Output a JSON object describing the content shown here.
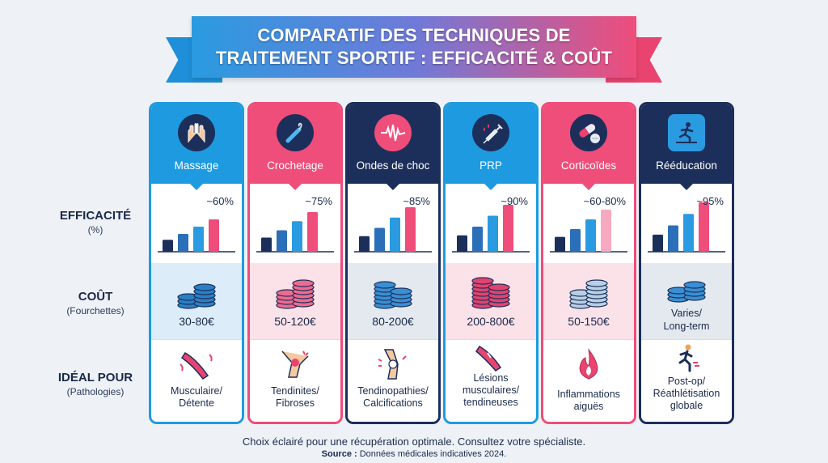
{
  "title": {
    "line1": "COMPARATIF DES TECHNIQUES DE",
    "line2": "TRAITEMENT SPORTIF : EFFICACITÉ & COÛT"
  },
  "row_labels": {
    "efficacite": {
      "main": "EFFICACITÉ",
      "sub": "(%)"
    },
    "cout": {
      "main": "COÛT",
      "sub": "(Fourchettes)"
    },
    "ideal": {
      "main": "IDÉAL POUR",
      "sub": "(Pathologies)"
    }
  },
  "colors": {
    "blue": "#1e9be0",
    "pink": "#ef4d7a",
    "navy": "#1c2f5a",
    "light_blue_bg": "#dcecf8",
    "light_pink_bg": "#fbe1e8",
    "light_gray_bg": "#e4e9f0"
  },
  "columns": [
    {
      "name": "Massage",
      "icon": "hands-icon",
      "efficacy": "~60%",
      "efficacy_value": 60,
      "cost": "30-80€",
      "ideal": [
        "Musculaire/",
        "Détente"
      ]
    },
    {
      "name": "Crochetage",
      "icon": "hook-tool-icon",
      "efficacy": "~75%",
      "efficacy_value": 75,
      "cost": "50-120€",
      "ideal": [
        "Tendinites/",
        "Fibroses"
      ]
    },
    {
      "name": "Ondes de choc",
      "icon": "shockwave-icon",
      "efficacy": "~85%",
      "efficacy_value": 85,
      "cost": "80-200€",
      "ideal": [
        "Tendinopathies/",
        "Calcifications"
      ]
    },
    {
      "name": "PRP",
      "icon": "syringe-icon",
      "efficacy": "~90%",
      "efficacy_value": 90,
      "cost": "200-800€",
      "ideal": [
        "Lésions",
        "musculaires/",
        "tendineuses"
      ]
    },
    {
      "name": "Corticoïdes",
      "icon": "pills-icon",
      "efficacy": "~60-80%",
      "efficacy_value": 80,
      "cost": "50-150€",
      "ideal": [
        "Inflammations",
        "aiguës"
      ]
    },
    {
      "name": "Rééducation",
      "icon": "exercise-icon",
      "efficacy": "~95%",
      "efficacy_value": 95,
      "cost": "Varies/ Long-term",
      "cost_lines": [
        "Varies/",
        "Long-term"
      ],
      "ideal": [
        "Post-op/",
        "Réathlétisation",
        "globale"
      ]
    }
  ],
  "footer": {
    "note": "Choix éclairé pour une récupération optimale. Consultez votre spécialiste.",
    "source_label": "Source :",
    "source_text": "Données médicales indicatives 2024."
  }
}
